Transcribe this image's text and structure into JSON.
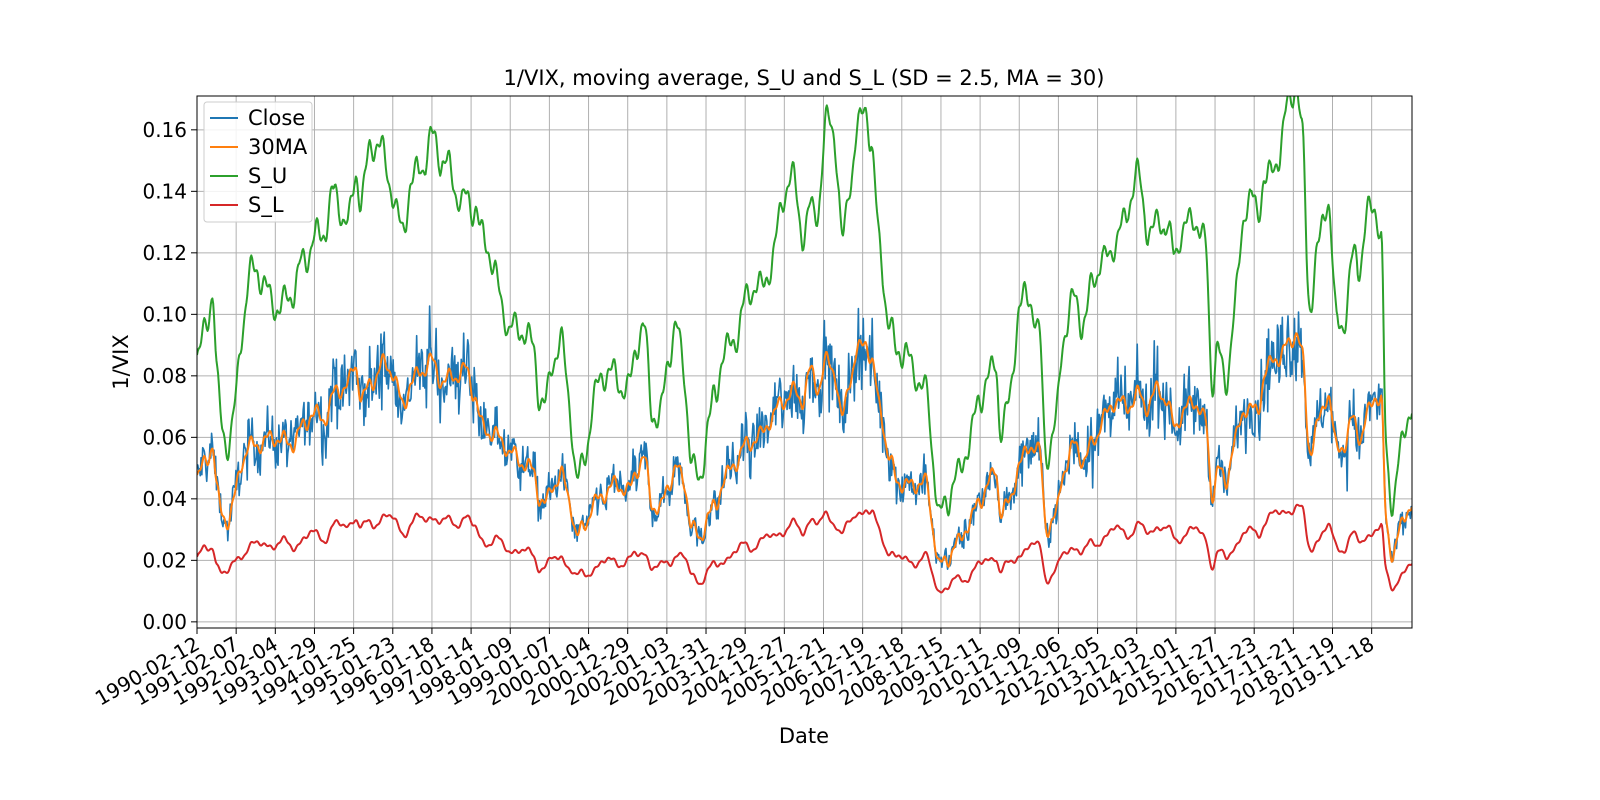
{
  "chart_data": {
    "type": "line",
    "title": "1/VIX, moving average, S_U and S_L (SD = 2.5, MA = 30)",
    "xlabel": "Date",
    "ylabel": "1/VIX",
    "ylim": [
      -0.002,
      0.171
    ],
    "grid": true,
    "legend_position": "top-left",
    "x_start": 1990.11,
    "x_end": 2020.83,
    "y_ticks": [
      0.0,
      0.02,
      0.04,
      0.06,
      0.08,
      0.1,
      0.12,
      0.14,
      0.16
    ],
    "y_tick_labels": [
      "0.00",
      "0.02",
      "0.04",
      "0.06",
      "0.08",
      "0.10",
      "0.12",
      "0.14",
      "0.16"
    ],
    "x_ticks": [
      {
        "label": "1990-02-12",
        "year": 1990.11
      },
      {
        "label": "1991-02-07",
        "year": 1991.1
      },
      {
        "label": "1992-02-04",
        "year": 1992.09
      },
      {
        "label": "1993-01-29",
        "year": 1993.08
      },
      {
        "label": "1994-01-25",
        "year": 1994.07
      },
      {
        "label": "1995-01-23",
        "year": 1995.06
      },
      {
        "label": "1996-01-18",
        "year": 1996.05
      },
      {
        "label": "1997-01-14",
        "year": 1997.04
      },
      {
        "label": "1998-01-09",
        "year": 1998.03
      },
      {
        "label": "1999-01-07",
        "year": 1999.02
      },
      {
        "label": "2000-01-04",
        "year": 2000.01
      },
      {
        "label": "2000-12-29",
        "year": 2001.0
      },
      {
        "label": "2002-01-03",
        "year": 2001.99
      },
      {
        "label": "2002-12-31",
        "year": 2002.98
      },
      {
        "label": "2003-12-29",
        "year": 2003.97
      },
      {
        "label": "2004-12-27",
        "year": 2004.96
      },
      {
        "label": "2005-12-21",
        "year": 2005.95
      },
      {
        "label": "2006-12-19",
        "year": 2006.94
      },
      {
        "label": "2007-12-18",
        "year": 2007.93
      },
      {
        "label": "2008-12-15",
        "year": 2008.92
      },
      {
        "label": "2009-12-11",
        "year": 2009.91
      },
      {
        "label": "2010-12-09",
        "year": 2010.9
      },
      {
        "label": "2011-12-06",
        "year": 2011.89
      },
      {
        "label": "2012-12-05",
        "year": 2012.88
      },
      {
        "label": "2013-12-03",
        "year": 2013.87
      },
      {
        "label": "2014-12-01",
        "year": 2014.86
      },
      {
        "label": "2015-11-27",
        "year": 2015.85
      },
      {
        "label": "2016-11-23",
        "year": 2016.84
      },
      {
        "label": "2017-11-21",
        "year": 2017.83
      },
      {
        "label": "2018-11-19",
        "year": 2018.82
      },
      {
        "label": "2019-11-18",
        "year": 2019.81
      }
    ],
    "ma_keypoints": [
      [
        1990.11,
        0.047
      ],
      [
        1990.3,
        0.052
      ],
      [
        1990.5,
        0.058
      ],
      [
        1990.6,
        0.04
      ],
      [
        1990.75,
        0.034
      ],
      [
        1990.9,
        0.033
      ],
      [
        1991.05,
        0.041
      ],
      [
        1991.2,
        0.052
      ],
      [
        1991.4,
        0.057
      ],
      [
        1991.7,
        0.058
      ],
      [
        1992.0,
        0.06
      ],
      [
        1992.5,
        0.058
      ],
      [
        1992.8,
        0.064
      ],
      [
        1993.0,
        0.068
      ],
      [
        1993.3,
        0.066
      ],
      [
        1993.6,
        0.075
      ],
      [
        1993.9,
        0.077
      ],
      [
        1994.1,
        0.084
      ],
      [
        1994.25,
        0.072
      ],
      [
        1994.5,
        0.078
      ],
      [
        1994.8,
        0.084
      ],
      [
        1995.0,
        0.082
      ],
      [
        1995.3,
        0.07
      ],
      [
        1995.5,
        0.078
      ],
      [
        1995.8,
        0.082
      ],
      [
        1996.0,
        0.085
      ],
      [
        1996.3,
        0.078
      ],
      [
        1996.6,
        0.08
      ],
      [
        1996.9,
        0.082
      ],
      [
        1997.1,
        0.074
      ],
      [
        1997.3,
        0.063
      ],
      [
        1997.6,
        0.061
      ],
      [
        1997.85,
        0.058
      ],
      [
        1998.0,
        0.055
      ],
      [
        1998.3,
        0.052
      ],
      [
        1998.6,
        0.049
      ],
      [
        1998.75,
        0.04
      ],
      [
        1998.9,
        0.038
      ],
      [
        1999.1,
        0.045
      ],
      [
        1999.3,
        0.048
      ],
      [
        1999.5,
        0.04
      ],
      [
        1999.7,
        0.027
      ],
      [
        1999.9,
        0.032
      ],
      [
        2000.1,
        0.038
      ],
      [
        2000.4,
        0.042
      ],
      [
        2000.7,
        0.045
      ],
      [
        2001.0,
        0.042
      ],
      [
        2001.2,
        0.05
      ],
      [
        2001.4,
        0.053
      ],
      [
        2001.6,
        0.038
      ],
      [
        2001.8,
        0.036
      ],
      [
        2002.0,
        0.045
      ],
      [
        2002.2,
        0.05
      ],
      [
        2002.4,
        0.046
      ],
      [
        2002.6,
        0.03
      ],
      [
        2002.8,
        0.027
      ],
      [
        2003.0,
        0.034
      ],
      [
        2003.2,
        0.038
      ],
      [
        2003.4,
        0.046
      ],
      [
        2003.7,
        0.052
      ],
      [
        2004.0,
        0.058
      ],
      [
        2004.3,
        0.06
      ],
      [
        2004.6,
        0.066
      ],
      [
        2004.9,
        0.072
      ],
      [
        2005.2,
        0.075
      ],
      [
        2005.4,
        0.072
      ],
      [
        2005.6,
        0.082
      ],
      [
        2005.8,
        0.076
      ],
      [
        2006.0,
        0.085
      ],
      [
        2006.2,
        0.082
      ],
      [
        2006.4,
        0.065
      ],
      [
        2006.6,
        0.08
      ],
      [
        2006.8,
        0.088
      ],
      [
        2007.0,
        0.092
      ],
      [
        2007.15,
        0.084
      ],
      [
        2007.35,
        0.07
      ],
      [
        2007.6,
        0.052
      ],
      [
        2007.8,
        0.046
      ],
      [
        2008.0,
        0.044
      ],
      [
        2008.3,
        0.045
      ],
      [
        2008.55,
        0.045
      ],
      [
        2008.7,
        0.03
      ],
      [
        2008.85,
        0.017
      ],
      [
        2009.0,
        0.02
      ],
      [
        2009.3,
        0.025
      ],
      [
        2009.6,
        0.032
      ],
      [
        2009.9,
        0.04
      ],
      [
        2010.1,
        0.045
      ],
      [
        2010.3,
        0.05
      ],
      [
        2010.4,
        0.035
      ],
      [
        2010.6,
        0.038
      ],
      [
        2010.9,
        0.052
      ],
      [
        2011.2,
        0.058
      ],
      [
        2011.4,
        0.055
      ],
      [
        2011.55,
        0.03
      ],
      [
        2011.8,
        0.034
      ],
      [
        2012.0,
        0.05
      ],
      [
        2012.3,
        0.058
      ],
      [
        2012.5,
        0.052
      ],
      [
        2012.8,
        0.06
      ],
      [
        2013.0,
        0.066
      ],
      [
        2013.3,
        0.072
      ],
      [
        2013.6,
        0.07
      ],
      [
        2013.9,
        0.074
      ],
      [
        2014.1,
        0.07
      ],
      [
        2014.4,
        0.076
      ],
      [
        2014.6,
        0.072
      ],
      [
        2014.8,
        0.063
      ],
      [
        2015.0,
        0.068
      ],
      [
        2015.3,
        0.072
      ],
      [
        2015.6,
        0.065
      ],
      [
        2015.75,
        0.04
      ],
      [
        2015.9,
        0.05
      ],
      [
        2016.1,
        0.045
      ],
      [
        2016.3,
        0.058
      ],
      [
        2016.6,
        0.07
      ],
      [
        2016.9,
        0.068
      ],
      [
        2017.1,
        0.082
      ],
      [
        2017.4,
        0.086
      ],
      [
        2017.7,
        0.09
      ],
      [
        2017.9,
        0.095
      ],
      [
        2018.05,
        0.085
      ],
      [
        2018.2,
        0.055
      ],
      [
        2018.45,
        0.065
      ],
      [
        2018.7,
        0.075
      ],
      [
        2018.9,
        0.055
      ],
      [
        2019.1,
        0.058
      ],
      [
        2019.3,
        0.066
      ],
      [
        2019.5,
        0.06
      ],
      [
        2019.7,
        0.068
      ],
      [
        2019.9,
        0.074
      ],
      [
        2020.05,
        0.072
      ],
      [
        2020.15,
        0.028
      ],
      [
        2020.3,
        0.022
      ],
      [
        2020.5,
        0.03
      ],
      [
        2020.83,
        0.04
      ]
    ],
    "series": [
      {
        "name": "Close",
        "color": "#1f77b4"
      },
      {
        "name": "30MA",
        "color": "#ff7f0e"
      },
      {
        "name": "S_U",
        "color": "#2ca02c"
      },
      {
        "name": "S_L",
        "color": "#d62728"
      }
    ]
  }
}
